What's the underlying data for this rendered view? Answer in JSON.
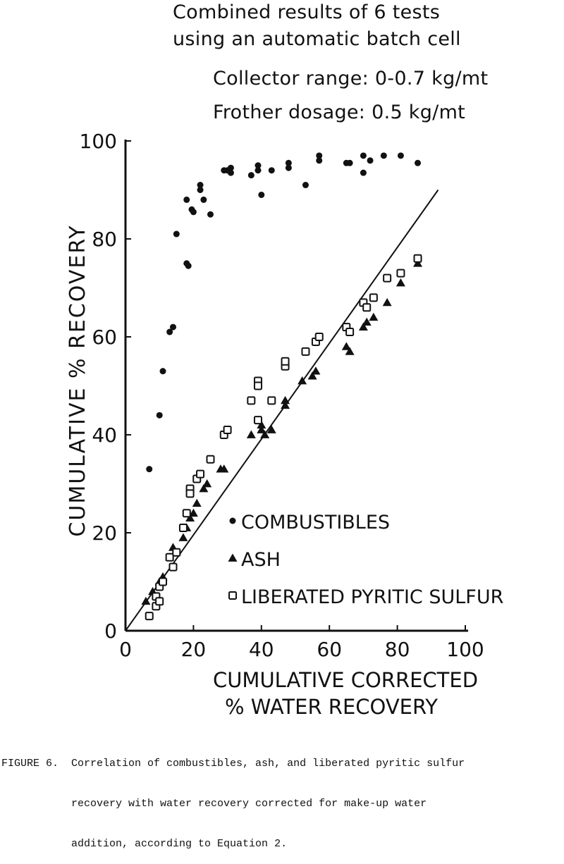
{
  "title_lines": [
    "Combined results of 6 tests",
    "using an automatic batch cell",
    "Collector range: 0-0.7 kg/mt",
    "Frother dosage: 0.5 kg/mt"
  ],
  "caption_lines": [
    "FIGURE 6.  Correlation of combustibles, ash, and liberated pyritic sulfur",
    "           recovery with water recovery corrected for make-up water",
    "           addition, according to Equation 2."
  ],
  "chart_data": {
    "type": "scatter",
    "xlabel_lines": [
      "CUMULATIVE CORRECTED",
      "% WATER RECOVERY"
    ],
    "ylabel": "CUMULATIVE % RECOVERY",
    "xlim": [
      0,
      100
    ],
    "ylim": [
      0,
      100
    ],
    "xticks": [
      "0",
      "20",
      "40",
      "60",
      "80",
      "100"
    ],
    "yticks": [
      "0",
      "20",
      "40",
      "60",
      "80",
      "100"
    ],
    "grid": false,
    "legend_position": "lower-right",
    "reference_line": {
      "x": [
        0,
        92
      ],
      "y": [
        0,
        90
      ]
    },
    "series": [
      {
        "name": "COMBUSTIBLES",
        "marker": "circle",
        "points": [
          [
            7,
            33
          ],
          [
            10,
            44
          ],
          [
            11,
            53
          ],
          [
            13,
            61
          ],
          [
            14,
            62
          ],
          [
            15,
            81
          ],
          [
            18,
            75
          ],
          [
            18.5,
            74.5
          ],
          [
            18,
            88
          ],
          [
            19.5,
            86
          ],
          [
            20,
            85.5
          ],
          [
            22,
            91
          ],
          [
            22,
            90
          ],
          [
            23,
            88
          ],
          [
            25,
            85
          ],
          [
            29,
            94
          ],
          [
            30,
            94
          ],
          [
            31,
            94.5
          ],
          [
            31,
            93.5
          ],
          [
            37,
            93
          ],
          [
            39,
            95
          ],
          [
            39,
            94
          ],
          [
            40,
            89
          ],
          [
            43,
            94
          ],
          [
            48,
            95.5
          ],
          [
            48,
            94.5
          ],
          [
            53,
            91
          ],
          [
            57,
            97
          ],
          [
            57,
            96
          ],
          [
            65,
            95.5
          ],
          [
            66,
            95.5
          ],
          [
            70,
            97
          ],
          [
            70,
            93.5
          ],
          [
            72,
            96
          ],
          [
            76,
            97
          ],
          [
            81,
            97
          ],
          [
            86,
            95.5
          ]
        ]
      },
      {
        "name": "ASH",
        "marker": "triangle",
        "points": [
          [
            6,
            6
          ],
          [
            8,
            8
          ],
          [
            10,
            10
          ],
          [
            11,
            11
          ],
          [
            13,
            15
          ],
          [
            14,
            17
          ],
          [
            17,
            19
          ],
          [
            18,
            21
          ],
          [
            19,
            23
          ],
          [
            20,
            24
          ],
          [
            21,
            26
          ],
          [
            23,
            29
          ],
          [
            24,
            30
          ],
          [
            28,
            33
          ],
          [
            29,
            33
          ],
          [
            37,
            40
          ],
          [
            40,
            41
          ],
          [
            40,
            42
          ],
          [
            41,
            40
          ],
          [
            43,
            41
          ],
          [
            47,
            47
          ],
          [
            47,
            46
          ],
          [
            52,
            51
          ],
          [
            55,
            52
          ],
          [
            56,
            53
          ],
          [
            65,
            58
          ],
          [
            66,
            57
          ],
          [
            70,
            62
          ],
          [
            71,
            63
          ],
          [
            73,
            64
          ],
          [
            77,
            67
          ],
          [
            81,
            71
          ],
          [
            86,
            75
          ]
        ]
      },
      {
        "name": "LIBERATED PYRITIC SULFUR",
        "marker": "square",
        "points": [
          [
            7,
            3
          ],
          [
            9,
            5
          ],
          [
            9,
            7
          ],
          [
            10,
            9
          ],
          [
            10,
            6
          ],
          [
            11,
            10
          ],
          [
            13,
            15
          ],
          [
            14,
            13
          ],
          [
            15,
            16
          ],
          [
            17,
            21
          ],
          [
            18,
            24
          ],
          [
            19,
            29
          ],
          [
            19,
            28
          ],
          [
            21,
            31
          ],
          [
            22,
            32
          ],
          [
            25,
            35
          ],
          [
            29,
            40
          ],
          [
            30,
            41
          ],
          [
            37,
            47
          ],
          [
            39,
            51
          ],
          [
            39,
            50
          ],
          [
            39,
            43
          ],
          [
            43,
            47
          ],
          [
            47,
            54
          ],
          [
            47,
            55
          ],
          [
            53,
            57
          ],
          [
            56,
            59
          ],
          [
            57,
            60
          ],
          [
            65,
            62
          ],
          [
            66,
            61
          ],
          [
            70,
            67
          ],
          [
            71,
            66
          ],
          [
            73,
            68
          ],
          [
            77,
            72
          ],
          [
            81,
            73
          ],
          [
            86,
            76
          ]
        ]
      }
    ]
  }
}
